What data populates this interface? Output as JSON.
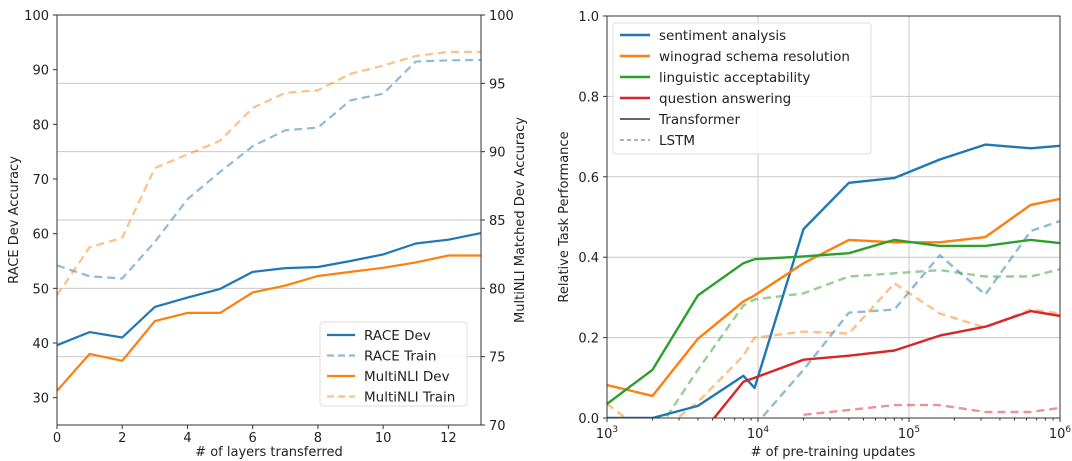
{
  "chart_data": [
    {
      "type": "line",
      "xlabel": "# of layers transferred",
      "ylabel": "RACE Dev Accuracy",
      "ylabel_right": "MultiNLI Matched Dev Accuracy",
      "ylabel_color": "#1f77b4",
      "ylabel_right_color": "#ff7f0e",
      "xlim": [
        0,
        13
      ],
      "ylim": [
        25,
        100
      ],
      "ylim_right": [
        70,
        100
      ],
      "xticks": [
        0,
        2,
        4,
        6,
        8,
        10,
        12
      ],
      "xtick_labels": [
        "0",
        "2",
        "4",
        "6",
        "8",
        "10",
        "12"
      ],
      "yticks": [
        30,
        40,
        50,
        60,
        70,
        80,
        90,
        100
      ],
      "ytick_labels": [
        "30",
        "40",
        "50",
        "60",
        "70",
        "80",
        "90",
        "100"
      ],
      "yticks_right": [
        70,
        75,
        80,
        85,
        90,
        95,
        100
      ],
      "ytick_labels_right": [
        "70",
        "75",
        "80",
        "85",
        "90",
        "95",
        "100"
      ],
      "grid": "horizontal (right axis)",
      "legend_position": "bottom-right",
      "x": [
        0,
        1,
        2,
        3,
        4,
        5,
        6,
        7,
        8,
        9,
        10,
        11,
        12,
        13
      ],
      "series": [
        {
          "name": "RACE Dev",
          "axis": "left",
          "style": "solid",
          "color": "#1f77b4",
          "opacity": 1,
          "values": [
            39.6,
            42.0,
            41.0,
            46.6,
            48.3,
            49.9,
            53.0,
            53.7,
            53.9,
            55.0,
            56.2,
            58.2,
            58.9,
            60.1
          ]
        },
        {
          "name": "RACE Train",
          "axis": "left",
          "style": "dashed",
          "color": "#1f77b4",
          "opacity": 0.5,
          "values": [
            54.2,
            52.2,
            51.8,
            58.5,
            66.3,
            71.3,
            76.0,
            78.9,
            79.4,
            84.4,
            85.6,
            91.5,
            91.7,
            91.8
          ]
        },
        {
          "name": "MultiNLI Dev",
          "axis": "right",
          "style": "solid",
          "color": "#ff7f0e",
          "opacity": 1,
          "values": [
            72.5,
            75.2,
            74.7,
            77.6,
            78.2,
            78.2,
            79.7,
            80.2,
            80.9,
            81.2,
            81.5,
            81.9,
            82.4,
            82.4
          ]
        },
        {
          "name": "MultiNLI Train",
          "axis": "right",
          "style": "dashed",
          "color": "#ff7f0e",
          "opacity": 0.5,
          "values": [
            79.5,
            83.0,
            83.7,
            88.8,
            89.8,
            90.8,
            93.2,
            94.3,
            94.5,
            95.7,
            96.3,
            97.0,
            97.3,
            97.3
          ]
        }
      ]
    },
    {
      "type": "line",
      "xlabel": "# of pre-training updates",
      "ylabel": "Relative Task Performance",
      "xscale": "log",
      "xlim": [
        1000,
        1000000
      ],
      "ylim": [
        0,
        1.0
      ],
      "xtick_labels": [
        {
          "base": "10",
          "exp": "3"
        },
        {
          "base": "10",
          "exp": "4"
        },
        {
          "base": "10",
          "exp": "5"
        },
        {
          "base": "10",
          "exp": "6"
        }
      ],
      "xticks": [
        1000,
        10000,
        100000,
        1000000
      ],
      "yticks": [
        0.0,
        0.2,
        0.4,
        0.6,
        0.8,
        1.0
      ],
      "ytick_labels": [
        "0.0",
        "0.2",
        "0.4",
        "0.6",
        "0.8",
        "1.0"
      ],
      "grid": "both",
      "legend_position": "top-left",
      "x": [
        1000,
        2000,
        4000,
        8000,
        9500,
        20000,
        40000,
        80000,
        160000,
        320000,
        640000,
        1000000
      ],
      "series": [
        {
          "name": "sentiment analysis",
          "model": "Transformer",
          "style": "solid",
          "color": "#1f77b4",
          "values": [
            0.0,
            0.0,
            0.03,
            0.105,
            0.075,
            0.47,
            0.585,
            0.597,
            0.643,
            0.68,
            0.671,
            0.677
          ]
        },
        {
          "name": "winograd schema resolution",
          "model": "Transformer",
          "style": "solid",
          "color": "#ff7f0e",
          "values": [
            0.082,
            0.055,
            0.197,
            0.29,
            0.305,
            0.385,
            0.443,
            0.437,
            0.437,
            0.45,
            0.53,
            0.545
          ]
        },
        {
          "name": "linguistic acceptability",
          "model": "Transformer",
          "style": "solid",
          "color": "#2ca02c",
          "values": [
            0.035,
            0.12,
            0.305,
            0.385,
            0.395,
            0.402,
            0.41,
            0.443,
            0.428,
            0.428,
            0.443,
            0.435
          ]
        },
        {
          "name": "question answering",
          "model": "Transformer",
          "style": "solid",
          "color": "#d62728",
          "values": [
            null,
            null,
            -0.05,
            0.09,
            0.1,
            0.145,
            0.155,
            0.168,
            0.205,
            0.227,
            0.266,
            0.254
          ]
        },
        {
          "name": "sentiment analysis",
          "model": "LSTM",
          "style": "dashed",
          "color": "#1f77b4",
          "values": [
            null,
            null,
            null,
            null,
            -0.02,
            0.12,
            0.262,
            0.27,
            0.405,
            0.307,
            0.465,
            0.49
          ]
        },
        {
          "name": "winograd schema resolution",
          "model": "LSTM",
          "style": "dashed",
          "color": "#ff7f0e",
          "values": [
            0.035,
            -0.05,
            0.04,
            0.155,
            0.2,
            0.215,
            0.21,
            0.335,
            0.26,
            0.225,
            0.27,
            0.26
          ]
        },
        {
          "name": "linguistic acceptability",
          "model": "LSTM",
          "style": "dashed",
          "color": "#2ca02c",
          "values": [
            null,
            -0.05,
            0.12,
            0.28,
            0.295,
            0.31,
            0.352,
            0.36,
            0.368,
            0.352,
            0.352,
            0.37
          ]
        },
        {
          "name": "question answering",
          "model": "LSTM",
          "style": "dashed",
          "color": "#d62728",
          "values": [
            null,
            null,
            null,
            null,
            null,
            0.008,
            0.02,
            0.032,
            0.032,
            0.015,
            0.015,
            0.025
          ]
        }
      ],
      "legend": [
        {
          "label": "sentiment analysis",
          "color": "#1f77b4",
          "style": "solid"
        },
        {
          "label": "winograd schema resolution",
          "color": "#ff7f0e",
          "style": "solid"
        },
        {
          "label": "linguistic acceptability",
          "color": "#2ca02c",
          "style": "solid"
        },
        {
          "label": "question answering",
          "color": "#d62728",
          "style": "solid"
        },
        {
          "label": "Transformer",
          "color": "#333333",
          "style": "solid-thin"
        },
        {
          "label": "LSTM",
          "color": "#999999",
          "style": "dashed-thin"
        }
      ]
    }
  ]
}
